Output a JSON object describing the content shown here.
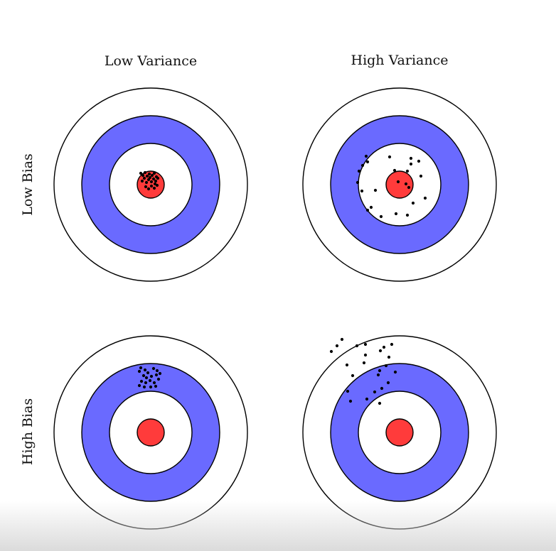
{
  "columns": [
    {
      "label": "Low Variance"
    },
    {
      "label": "High Variance"
    }
  ],
  "rows": [
    {
      "label": "Low Bias"
    },
    {
      "label": "High Bias"
    }
  ],
  "colors": {
    "outer_ring": "#ffffff",
    "blue_ring": "#6a6aff",
    "inner_ring": "#ffffff",
    "bullseye": "#ff3b3b",
    "outline": "#000000",
    "dots": "#000000"
  },
  "panels": [
    {
      "id": "low-bias-low-variance",
      "row": 0,
      "col": 0
    },
    {
      "id": "low-bias-high-variance",
      "row": 0,
      "col": 1
    },
    {
      "id": "high-bias-low-variance",
      "row": 1,
      "col": 0
    },
    {
      "id": "high-bias-high-variance",
      "row": 1,
      "col": 1
    }
  ]
}
